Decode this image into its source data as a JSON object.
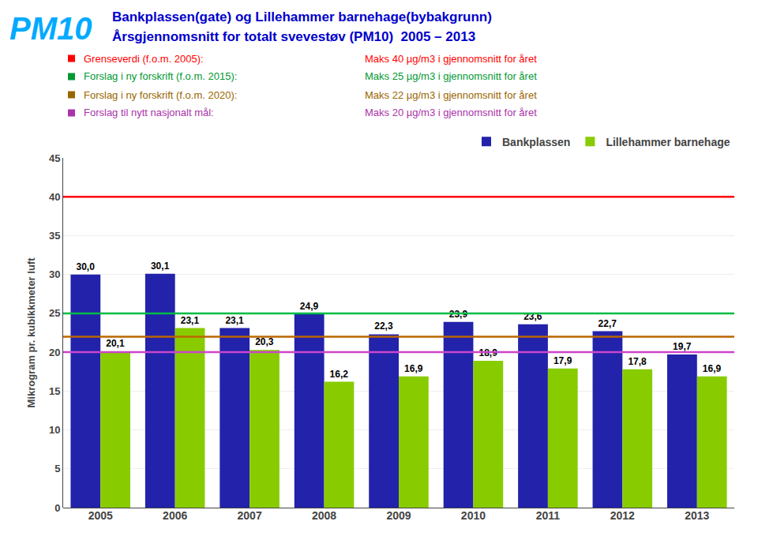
{
  "chart_data": {
    "type": "bar",
    "title": "Bankplassen(gate) og Lillehammer barnehage(bybakgrunn)",
    "subtitle": "Årsgjennomsnitt for totalt svevestøv (PM10)  2005 – 2013",
    "title_color": "#0000CC",
    "annotations": [
      {
        "text": "PM10",
        "color": "#00AAFF"
      },
      {
        "label": "Grenseverdi (f.o.m. 2005):",
        "text": "Maks 40 µg/m3 i gjennomsnitt for året",
        "color": "#FF0000"
      },
      {
        "label": "Forslag i ny forskrift (f.o.m. 2015):",
        "text": "Maks 25 µg/m3 i gjennomsnitt for året",
        "color": "#009933"
      },
      {
        "label": "Forslag i ny forskrift (f.o.m. 2020):",
        "text": "Maks 22 µg/m3 i gjennomsnitt for året",
        "color": "#996600"
      },
      {
        "label": "Forslag til nytt nasjonalt mål:",
        "text": "Maks 20 µg/m3 i gjennomsnitt for året",
        "color": "#AA33AA"
      }
    ],
    "categories": [
      "2005",
      "2006",
      "2007",
      "2008",
      "2009",
      "2010",
      "2011",
      "2012",
      "2013"
    ],
    "series": [
      {
        "name": "Bankplassen",
        "color": "#2222AA",
        "values": [
          30.0,
          30.1,
          23.1,
          24.9,
          22.3,
          23.9,
          23.6,
          22.7,
          19.7
        ],
        "value_labels": [
          "30,0",
          "30,1",
          "23,1",
          "24,9",
          "22,3",
          "23,9",
          "23,6",
          "22,7",
          "19,7"
        ]
      },
      {
        "name": "Lillehammer barnehage",
        "color": "#88CC00",
        "values": [
          20.1,
          23.1,
          20.3,
          16.2,
          16.9,
          18.9,
          17.9,
          17.8,
          16.9
        ],
        "value_labels": [
          "20,1",
          "23,1",
          "20,3",
          "16,2",
          "16,9",
          "18,9",
          "17,9",
          "17,8",
          "16,9"
        ]
      }
    ],
    "reference_lines": [
      {
        "value": 40,
        "color": "#FF0000"
      },
      {
        "value": 25,
        "color": "#00BB44"
      },
      {
        "value": 22,
        "color": "#BB6600"
      },
      {
        "value": 20,
        "color": "#CC44CC"
      }
    ],
    "ylabel": "Mikrogram pr. kubikkmeter luft",
    "ylim": [
      0,
      45
    ],
    "yticks": [
      0,
      5,
      10,
      15,
      20,
      25,
      30,
      35,
      40,
      45
    ],
    "grid": true,
    "legend": "upper right",
    "data_labels": true
  }
}
